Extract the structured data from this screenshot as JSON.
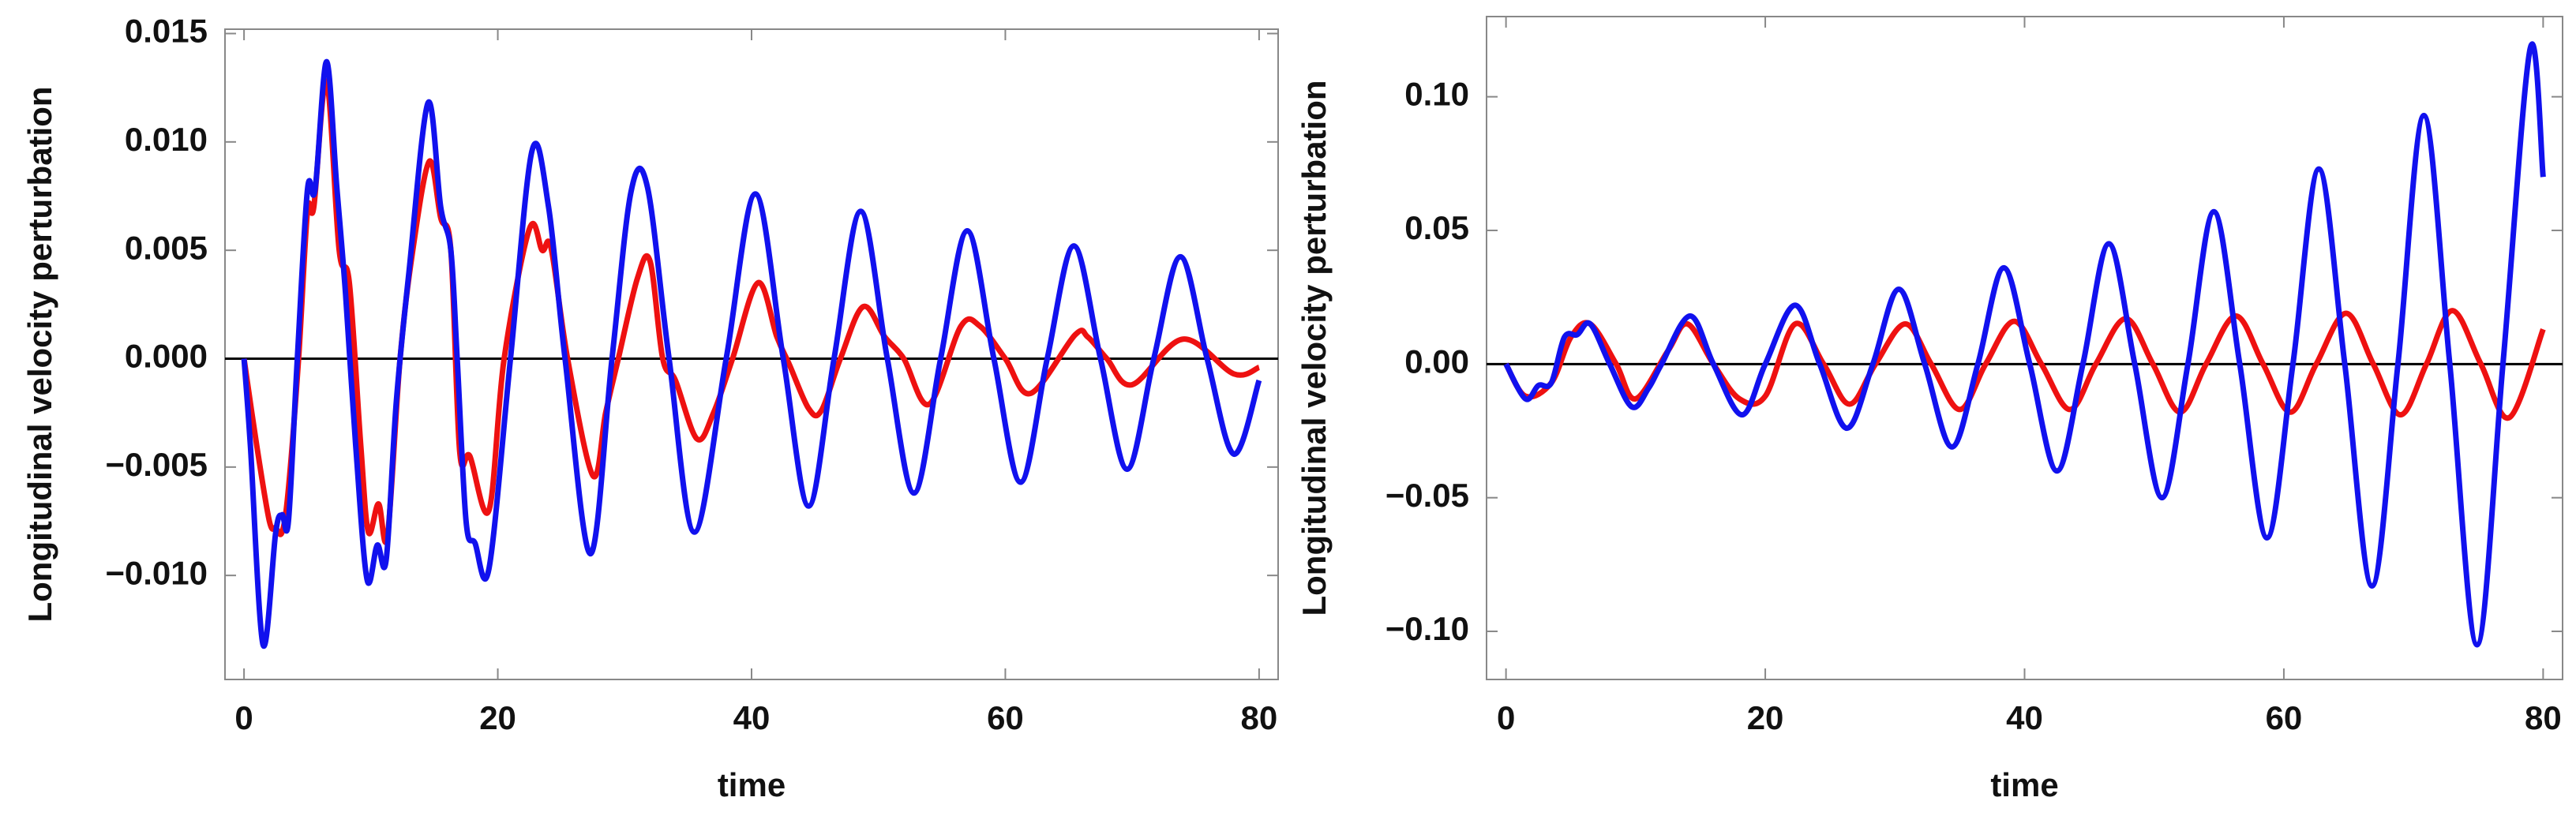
{
  "chart_data": [
    {
      "type": "line",
      "xlabel": "time",
      "ylabel": "Longitudinal velocity perturbation",
      "xlim": [
        -1.5,
        81.5
      ],
      "xticks": [
        0,
        20,
        40,
        60,
        80
      ],
      "ylim": [
        -0.0148,
        0.0152
      ],
      "yticks": [
        {
          "value": -0.01,
          "label": "−0.010"
        },
        {
          "value": -0.005,
          "label": "−0.005"
        },
        {
          "value": 0,
          "label": "0.000"
        },
        {
          "value": 0.005,
          "label": "0.005"
        },
        {
          "value": 0.01,
          "label": "0.010"
        },
        {
          "value": 0.015,
          "label": "0.015"
        }
      ],
      "series": [
        {
          "color": "#ee1111",
          "x": [
            0,
            1,
            2,
            2.5,
            3,
            3.5,
            4.3,
            5,
            5.5,
            6.5,
            7.5,
            8.3,
            9.2,
            9.8,
            10.6,
            11.3,
            12.3,
            13.3,
            14.6,
            15.5,
            16.3,
            17,
            17.8,
            19.3,
            20.5,
            22.5,
            23.5,
            24.2,
            25.5,
            27.5,
            28.5,
            29.5,
            31,
            32,
            33,
            34,
            35.7,
            37,
            38.5,
            40.5,
            42,
            43,
            44.5,
            45.5,
            47,
            48.8,
            50.5,
            52,
            54,
            56.5,
            58,
            60,
            62,
            65.5,
            66.5,
            68,
            70,
            74,
            78,
            80
          ],
          "values": [
            0,
            -0.004,
            -0.0075,
            -0.0078,
            -0.008,
            -0.006,
            0,
            0.0068,
            0.007,
            0.0128,
            0.005,
            0.0035,
            -0.004,
            -0.008,
            -0.0067,
            -0.0082,
            0,
            0.005,
            0.0091,
            0.0065,
            0.005,
            -0.0043,
            -0.0045,
            -0.007,
            0,
            0.006,
            0.005,
            0.0051,
            0,
            -0.0054,
            -0.0025,
            0,
            0.0037,
            0.0045,
            0,
            -0.001,
            -0.0037,
            -0.0025,
            0,
            0.0035,
            0.001,
            -0.0003,
            -0.0023,
            -0.0024,
            0,
            0.0024,
            0.001,
            0,
            -0.0021,
            0.0015,
            0.0015,
            0,
            -0.0016,
            0.0011,
            0.001,
            0,
            -0.0012,
            0.0009,
            -0.0007,
            -0.0004
          ]
        },
        {
          "color": "#1111ee",
          "x": [
            0,
            0.5,
            1.5,
            2.5,
            3,
            3.5,
            4.2,
            5,
            5.6,
            6.5,
            7.3,
            8,
            8.8,
            9.7,
            10.5,
            11.2,
            12,
            13,
            14.5,
            15.5,
            16.3,
            16.8,
            17.5,
            18.2,
            19.3,
            21,
            22.7,
            24,
            25.3,
            27.3,
            29,
            30.5,
            31.8,
            33.5,
            35.5,
            38,
            40.3,
            42.5,
            44.5,
            46.5,
            48.6,
            50.7,
            52.8,
            54.9,
            57,
            59.1,
            61.2,
            63.3,
            65.4,
            67.5,
            69.6,
            71.7,
            73.8,
            75.9,
            78,
            80
          ],
          "values": [
            0,
            -0.004,
            -0.0132,
            -0.008,
            -0.0072,
            -0.0075,
            0,
            0.0078,
            0.0078,
            0.0137,
            0.008,
            0.003,
            -0.004,
            -0.0102,
            -0.0086,
            -0.0093,
            -0.002,
            0.004,
            0.0118,
            0.007,
            0.005,
            0,
            -0.0075,
            -0.0085,
            -0.0097,
            0,
            0.0096,
            0.007,
            0,
            -0.009,
            0,
            0.0077,
            0.0079,
            0,
            -0.008,
            0,
            0.0076,
            0,
            -0.0068,
            0,
            0.0068,
            0,
            -0.0062,
            0,
            0.0059,
            0,
            -0.0057,
            0,
            0.0052,
            0,
            -0.0051,
            0,
            0.0047,
            0,
            -0.0044,
            -0.001
          ]
        }
      ]
    },
    {
      "type": "line",
      "xlabel": "time",
      "ylabel": "Longitudinal velocity perturbation",
      "xlim": [
        -1.5,
        81.5
      ],
      "xticks": [
        0,
        20,
        40,
        60,
        80
      ],
      "ylim": [
        -0.118,
        0.13
      ],
      "yticks": [
        {
          "value": -0.1,
          "label": "−0.10"
        },
        {
          "value": -0.05,
          "label": "−0.05"
        },
        {
          "value": 0,
          "label": "0.00"
        },
        {
          "value": 0.05,
          "label": "0.05"
        },
        {
          "value": 0.1,
          "label": "0.10"
        }
      ],
      "series": [
        {
          "color": "#ee1111",
          "x": [
            0,
            1.5,
            3.5,
            5,
            6.5,
            8.5,
            10,
            12.5,
            14,
            16,
            18,
            20,
            22.3,
            24.5,
            26.5,
            28.5,
            30.8,
            32.8,
            35,
            37,
            39.2,
            41.3,
            43.5,
            45.5,
            47.8,
            49.9,
            52,
            54,
            56.3,
            58.4,
            60.5,
            62.5,
            64.8,
            66.9,
            69,
            71,
            73,
            75.2,
            77.4,
            80
          ],
          "values": [
            0,
            -0.012,
            -0.007,
            0.01,
            0.015,
            0,
            -0.013,
            0.005,
            0.015,
            0,
            -0.013,
            -0.012,
            0.015,
            0,
            -0.015,
            0,
            0.015,
            0,
            -0.017,
            0,
            0.016,
            0,
            -0.017,
            0,
            0.017,
            0,
            -0.018,
            0,
            0.018,
            0,
            -0.018,
            0,
            0.019,
            0,
            -0.019,
            0,
            0.02,
            0,
            -0.02,
            0.013
          ]
        },
        {
          "color": "#1111ee",
          "x": [
            0,
            1.5,
            2.5,
            3.5,
            4.5,
            5.5,
            6.5,
            8,
            9.7,
            11,
            12,
            14.2,
            16,
            18.2,
            20,
            22.3,
            24.2,
            26.3,
            28.3,
            30.3,
            32.3,
            34.4,
            36.4,
            38.4,
            40.4,
            42.5,
            44.5,
            46.5,
            48.5,
            50.6,
            52.6,
            54.6,
            56.6,
            58.7,
            60.7,
            62.7,
            64.7,
            66.8,
            68.8,
            70.8,
            72.8,
            74.9,
            76.9,
            79,
            80
          ],
          "values": [
            0,
            -0.013,
            -0.008,
            -0.007,
            0.01,
            0.011,
            0.015,
            0,
            -0.016,
            -0.009,
            0,
            0.018,
            0,
            -0.019,
            0,
            0.022,
            0,
            -0.024,
            0,
            0.028,
            0,
            -0.031,
            0,
            0.036,
            0,
            -0.04,
            0,
            0.045,
            0,
            -0.05,
            0,
            0.057,
            0,
            -0.065,
            0,
            0.073,
            0,
            -0.083,
            0,
            0.093,
            0,
            -0.105,
            0,
            0.118,
            0.07
          ]
        }
      ]
    }
  ]
}
